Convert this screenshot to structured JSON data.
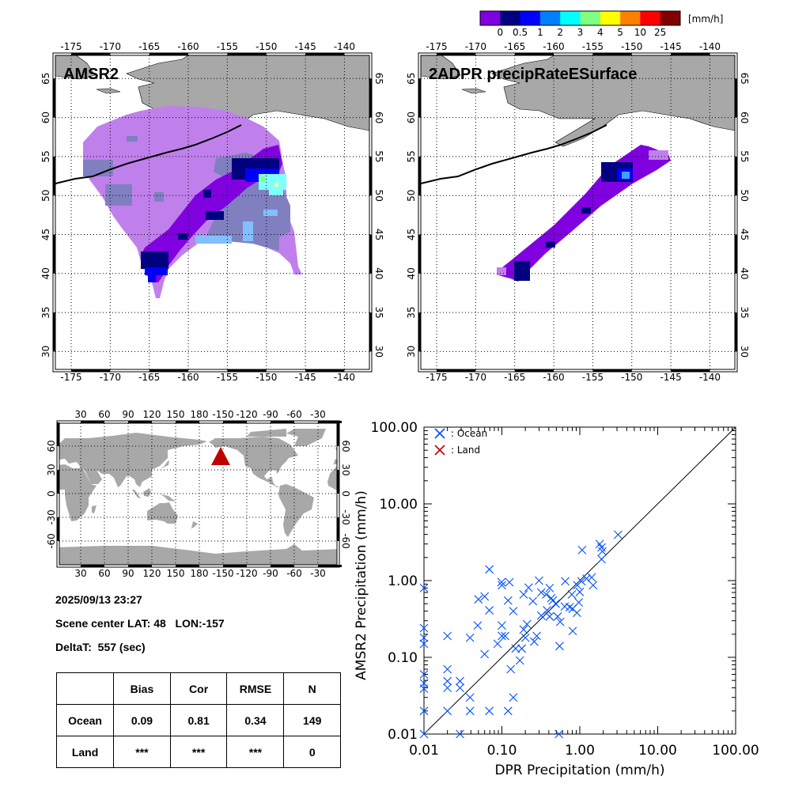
{
  "colorbar": {
    "labels": [
      "0",
      "0.5",
      "1",
      "2",
      "3",
      "4",
      "5",
      "10",
      "25"
    ],
    "unit": "[mm/h]",
    "colors": [
      "#8000e0",
      "#000080",
      "#0000ff",
      "#0080ff",
      "#00ffff",
      "#80ff80",
      "#ffff00",
      "#ff8000",
      "#ff0000",
      "#800000"
    ]
  },
  "maps": {
    "left_title": "AMSR2",
    "right_title": "2ADPR precipRateESurface",
    "lon_ticks": [
      "-175",
      "-170",
      "-165",
      "-160",
      "-155",
      "-150",
      "-145",
      "-140"
    ],
    "lat_ticks": [
      "65",
      "60",
      "55",
      "50",
      "45",
      "40",
      "35",
      "30"
    ],
    "land_color": "#a8a8a8"
  },
  "world_map": {
    "lon_ticks": [
      "30",
      "60",
      "90",
      "120",
      "150",
      "180",
      "-150",
      "-120",
      "-90",
      "-60",
      "-30"
    ],
    "lat_ticks": [
      "60",
      "30",
      "0",
      "-30",
      "-60"
    ],
    "marker_color": "#c00000"
  },
  "info": {
    "datetime": "2025/09/13 23:27",
    "scene_center": "Scene center LAT: 48   LON:-157",
    "delta_t": "DeltaT:  557 (sec)"
  },
  "stats_table": {
    "headers": [
      "",
      "Bias",
      "Cor",
      "RMSE",
      "N"
    ],
    "rows": [
      {
        "label": "Ocean",
        "values": [
          "0.09",
          "0.81",
          "0.34",
          "149"
        ]
      },
      {
        "label": "Land",
        "values": [
          "***",
          "***",
          "***",
          "0"
        ]
      }
    ]
  },
  "chart_data": {
    "type": "scatter",
    "xlabel": "DPR Precipitation (mm/h)",
    "ylabel": "AMSR2 Precipitation (mm/h)",
    "xlim": [
      0.01,
      100
    ],
    "ylim": [
      0.01,
      100
    ],
    "xscale": "log",
    "yscale": "log",
    "x_tick_labels": [
      "0.01",
      "0.10",
      "1.00",
      "10.00",
      "100.00"
    ],
    "y_tick_labels": [
      "0.01",
      "0.10",
      "1.00",
      "10.00",
      "100.00"
    ],
    "grid": false,
    "reference_line": "1:1",
    "legend_placement": "top-left",
    "series": [
      {
        "name": ": Ocean",
        "color": "#0050ff",
        "marker": "x",
        "points": [
          [
            3.1,
            3.96
          ],
          [
            1.8,
            3.0
          ],
          [
            1.9,
            2.7
          ],
          [
            1.95,
            2.4
          ],
          [
            1.07,
            2.5
          ],
          [
            1.9,
            1.9
          ],
          [
            0.069,
            1.4
          ],
          [
            0.01,
            0.8
          ],
          [
            0.099,
            0.955
          ],
          [
            0.1,
            0.87
          ],
          [
            0.125,
            0.95
          ],
          [
            0.3,
            1.0
          ],
          [
            0.22,
            0.81
          ],
          [
            0.65,
            0.98
          ],
          [
            0.41,
            0.8
          ],
          [
            0.32,
            0.7
          ],
          [
            0.19,
            0.66
          ],
          [
            0.06,
            0.62
          ],
          [
            0.05,
            0.57
          ],
          [
            0.12,
            0.55
          ],
          [
            0.25,
            0.54
          ],
          [
            0.37,
            0.66
          ],
          [
            0.43,
            0.59
          ],
          [
            0.49,
            0.5
          ],
          [
            0.069,
            0.41
          ],
          [
            0.14,
            0.4
          ],
          [
            0.38,
            0.41
          ],
          [
            0.32,
            0.35
          ],
          [
            0.41,
            0.34
          ],
          [
            0.52,
            0.34
          ],
          [
            0.56,
            0.29
          ],
          [
            0.64,
            0.46
          ],
          [
            0.79,
            0.66
          ],
          [
            0.93,
            0.87
          ],
          [
            1.05,
            0.98
          ],
          [
            1.22,
            1.06
          ],
          [
            1.42,
            1.1
          ],
          [
            1.48,
            0.87
          ],
          [
            1.0,
            0.71
          ],
          [
            0.97,
            0.52
          ],
          [
            0.92,
            0.38
          ],
          [
            0.81,
            0.43
          ],
          [
            0.81,
            0.22
          ],
          [
            0.21,
            0.27
          ],
          [
            0.19,
            0.23
          ],
          [
            0.28,
            0.19
          ],
          [
            0.2,
            0.18
          ],
          [
            0.26,
            0.16
          ],
          [
            0.15,
            0.13
          ],
          [
            0.18,
            0.13
          ],
          [
            0.55,
            0.14
          ],
          [
            0.1,
            0.26
          ],
          [
            0.1,
            0.19
          ],
          [
            0.11,
            0.19
          ],
          [
            0.088,
            0.15
          ],
          [
            0.049,
            0.26
          ],
          [
            0.06,
            0.11
          ],
          [
            0.039,
            0.18
          ],
          [
            0.02,
            0.19
          ],
          [
            0.01,
            0.24
          ],
          [
            0.01,
            0.18
          ],
          [
            0.01,
            0.15
          ],
          [
            0.17,
            0.091
          ],
          [
            0.13,
            0.07
          ],
          [
            0.02,
            0.07
          ],
          [
            0.01,
            0.06
          ],
          [
            0.01,
            0.046
          ],
          [
            0.01,
            0.039
          ],
          [
            0.02,
            0.049
          ],
          [
            0.02,
            0.04
          ],
          [
            0.029,
            0.049
          ],
          [
            0.029,
            0.04
          ],
          [
            0.039,
            0.03
          ],
          [
            0.14,
            0.03
          ],
          [
            0.01,
            0.02
          ],
          [
            0.02,
            0.02
          ],
          [
            0.039,
            0.02
          ],
          [
            0.069,
            0.02
          ],
          [
            0.12,
            0.02
          ],
          [
            0.01,
            0.01
          ],
          [
            0.029,
            0.01
          ],
          [
            0.54,
            0.01
          ],
          [
            0.74,
            0.45
          ],
          [
            0.45,
            0.55
          ]
        ]
      },
      {
        "name": ": Land",
        "color": "#c00000",
        "marker": "x",
        "points": []
      }
    ]
  }
}
